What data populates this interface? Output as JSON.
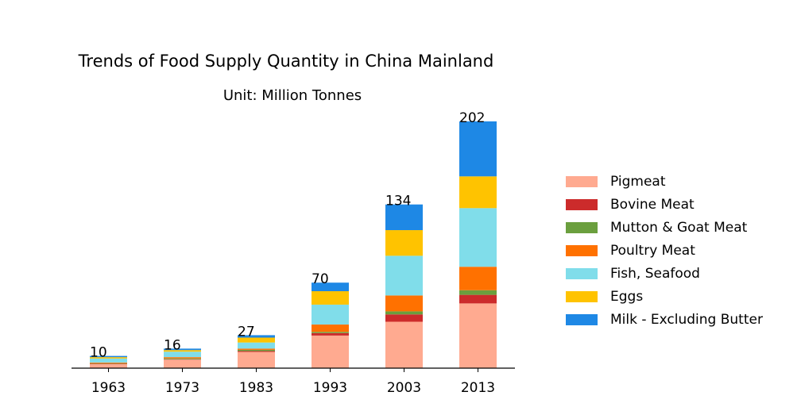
{
  "chart_data": {
    "type": "bar",
    "stacked": true,
    "title": "Trends of Food Supply Quantity in China Mainland",
    "subtitle": "Unit: Million Tonnes",
    "categories": [
      "1963",
      "1973",
      "1983",
      "1993",
      "2003",
      "2013"
    ],
    "totals": [
      "10",
      "16",
      "27",
      "70",
      "134",
      "202"
    ],
    "ylim": [
      0,
      202
    ],
    "grid": false,
    "legend_position": "right",
    "series": [
      {
        "name": "Pigmeat",
        "color": "#FFAA90",
        "values": [
          3.3,
          7.0,
          13.3,
          26.7,
          38.0,
          53.0
        ]
      },
      {
        "name": "Bovine Meat",
        "color": "#CC2B2B",
        "values": [
          0.3,
          0.3,
          0.7,
          2.0,
          6.0,
          7.0
        ]
      },
      {
        "name": "Mutton & Goat Meat",
        "color": "#6B9F3E",
        "values": [
          0.4,
          0.7,
          1.0,
          1.0,
          2.5,
          3.8
        ]
      },
      {
        "name": "Poultry Meat",
        "color": "#FF7100",
        "values": [
          0.6,
          1.0,
          1.0,
          6.0,
          13.0,
          19.2
        ]
      },
      {
        "name": "Fish, Seafood",
        "color": "#80DDEA",
        "values": [
          3.3,
          4.5,
          5.0,
          16.3,
          32.5,
          48.0
        ]
      },
      {
        "name": "Eggs",
        "color": "#FFC300",
        "values": [
          1.1,
          1.3,
          4.0,
          11.0,
          21.0,
          26.0
        ]
      },
      {
        "name": "Milk - Excluding Butter",
        "color": "#1E88E5",
        "values": [
          1.0,
          1.2,
          2.0,
          7.0,
          21.0,
          45.0
        ]
      }
    ]
  }
}
